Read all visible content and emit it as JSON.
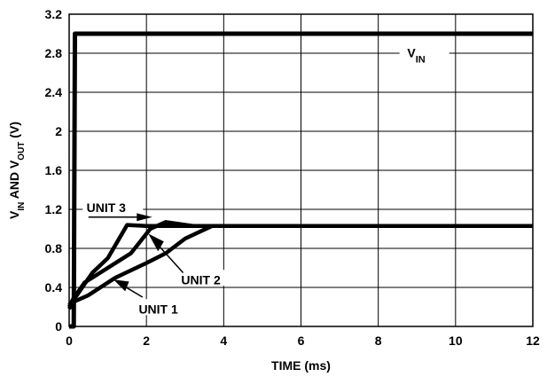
{
  "chart_data": {
    "type": "line",
    "title": "",
    "xlabel": "TIME (ms)",
    "ylabel": {
      "parts": [
        {
          "text": "V",
          "sub": false
        },
        {
          "text": "IN",
          "sub": true
        },
        {
          "text": " AND V",
          "sub": false
        },
        {
          "text": "OUT",
          "sub": true
        },
        {
          "text": " (V)",
          "sub": false
        }
      ]
    },
    "xlim": [
      0,
      12
    ],
    "ylim": [
      0,
      3.2
    ],
    "xticks": [
      0,
      2,
      4,
      6,
      8,
      10,
      12
    ],
    "yticks": [
      0,
      0.4,
      0.8,
      1.2,
      1.6,
      2,
      2.4,
      2.8,
      3.2
    ],
    "xtick_labels": [
      "0",
      "2",
      "4",
      "6",
      "8",
      "10",
      "12"
    ],
    "ytick_labels": [
      "0",
      "0.4",
      "0.8",
      "1.2",
      "1.6",
      "2",
      "2.4",
      "2.8",
      "3.2"
    ],
    "grid": true,
    "series": [
      {
        "name_parts": [
          {
            "text": "V",
            "sub": false
          },
          {
            "text": "IN",
            "sub": true
          }
        ],
        "color": "#000000",
        "x": [
          0,
          0.12,
          0.15,
          12
        ],
        "y": [
          0,
          0,
          3.0,
          3.0
        ]
      },
      {
        "name": "UNIT 1",
        "color": "#000000",
        "x": [
          0,
          0.1,
          0.5,
          1.2,
          2.0,
          2.5,
          3.0,
          3.7,
          12
        ],
        "y": [
          0.18,
          0.25,
          0.32,
          0.5,
          0.65,
          0.75,
          0.9,
          1.03,
          1.03
        ]
      },
      {
        "name": "UNIT 2",
        "color": "#000000",
        "x": [
          0,
          0.1,
          0.4,
          1.0,
          1.6,
          2.1,
          2.5,
          3.2,
          12
        ],
        "y": [
          0.2,
          0.28,
          0.45,
          0.6,
          0.75,
          1.0,
          1.07,
          1.03,
          1.03
        ]
      },
      {
        "name": "UNIT 3",
        "color": "#000000",
        "x": [
          0,
          0.2,
          0.6,
          1.0,
          1.5,
          2.0,
          2.4,
          12
        ],
        "y": [
          0.22,
          0.32,
          0.55,
          0.7,
          1.04,
          1.03,
          1.03,
          1.03
        ]
      }
    ],
    "annotations": [
      {
        "label_parts": [
          {
            "text": "V",
            "sub": false
          },
          {
            "text": "IN",
            "sub": true
          }
        ],
        "series": 0
      },
      {
        "label": "UNIT 3",
        "series": 3
      },
      {
        "label": "UNIT 2",
        "series": 2
      },
      {
        "label": "UNIT 1",
        "series": 1
      }
    ]
  }
}
